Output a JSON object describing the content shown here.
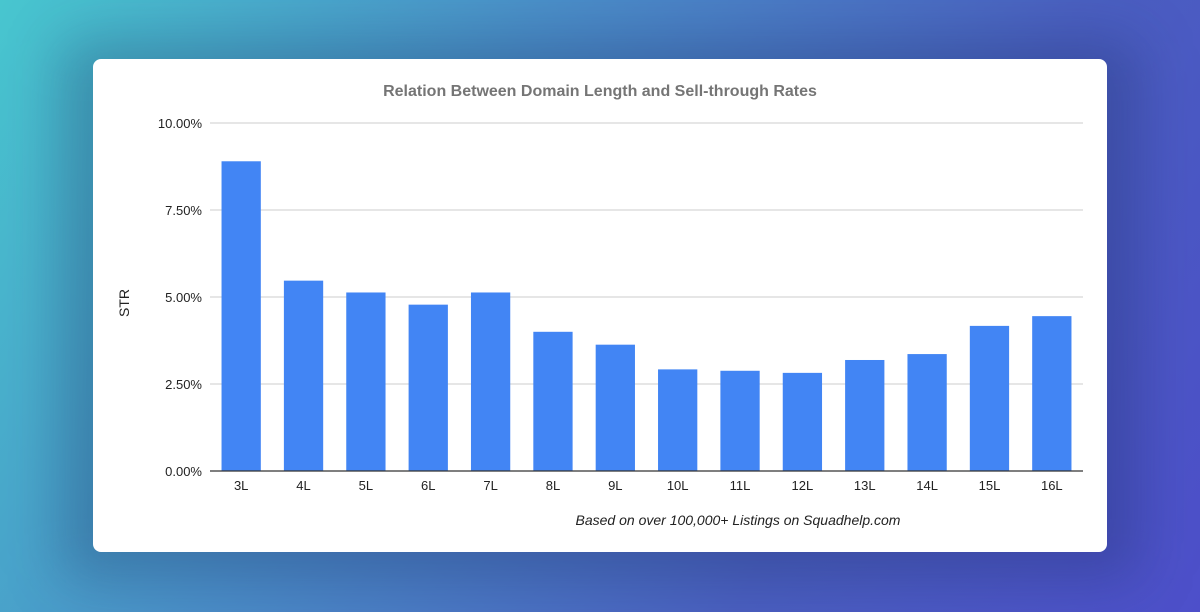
{
  "chart_data": {
    "type": "bar",
    "title": "Relation Between Domain Length and Sell-through Rates",
    "xlabel": "Based on over 100,000+ Listings on Squadhelp.com",
    "ylabel": "STR",
    "ylim": [
      0,
      10
    ],
    "ytick_labels": [
      "0.00%",
      "2.50%",
      "5.00%",
      "7.50%",
      "10.00%"
    ],
    "ytick_values": [
      0,
      2.5,
      5,
      7.5,
      10
    ],
    "grid": true,
    "categories": [
      "3L",
      "4L",
      "5L",
      "6L",
      "7L",
      "8L",
      "9L",
      "10L",
      "11L",
      "12L",
      "13L",
      "14L",
      "15L",
      "16L"
    ],
    "values": [
      8.9,
      5.47,
      5.13,
      4.78,
      5.13,
      4.0,
      3.63,
      2.92,
      2.88,
      2.82,
      3.19,
      3.36,
      4.17,
      4.45
    ],
    "bar_color": "#4285f4"
  }
}
